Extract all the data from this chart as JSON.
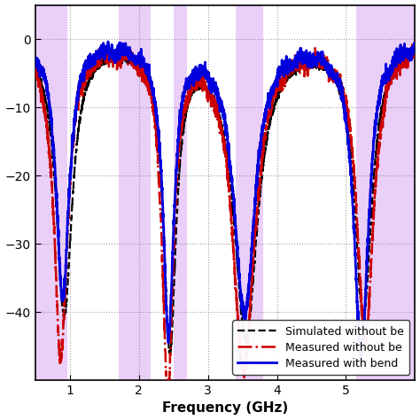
{
  "title": "",
  "xlabel": "Frequency (GHz)",
  "ylabel": "",
  "xlim": [
    0.5,
    6.0
  ],
  "ylim": [
    -50,
    5
  ],
  "yticks": [
    0,
    -10,
    -20,
    -30,
    -40
  ],
  "xticks": [
    1,
    2,
    3,
    4,
    5
  ],
  "grid_color": "#888888",
  "bg_color": "#ffffff",
  "shaded_bands": [
    [
      0.5,
      0.96
    ],
    [
      1.71,
      2.17
    ],
    [
      2.5,
      2.7
    ],
    [
      3.4,
      3.8
    ],
    [
      5.15,
      6.0
    ]
  ],
  "shade_color": "#cc88ee",
  "shade_alpha": 0.4,
  "line_simulated_color": "#000000",
  "line_measured_color": "#cc0000",
  "line_bench_color": "#0000dd",
  "legend_labels": [
    "Simulated without be",
    "Measured without be",
    "Measured with bend"
  ],
  "legend_fontsize": 9
}
